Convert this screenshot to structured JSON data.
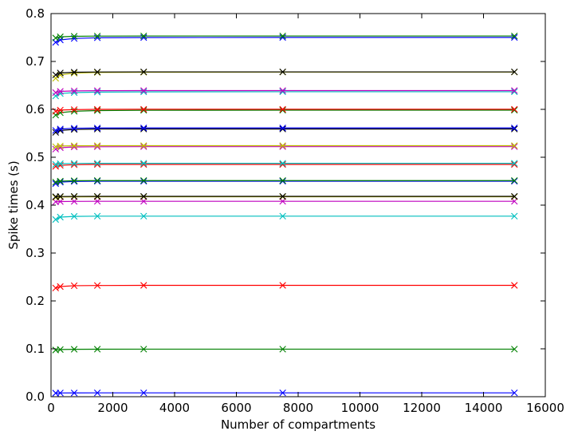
{
  "chart_data": {
    "type": "line",
    "title": "",
    "xlabel": "Number of compartments",
    "ylabel": "Spike times (s)",
    "xlim": [
      0,
      16000
    ],
    "ylim": [
      0.0,
      0.8
    ],
    "xticks": [
      0,
      2000,
      4000,
      6000,
      8000,
      10000,
      12000,
      14000,
      16000
    ],
    "xtick_labels": [
      "0",
      "2000",
      "4000",
      "6000",
      "8000",
      "10000",
      "12000",
      "14000",
      "16000"
    ],
    "yticks": [
      0.0,
      0.1,
      0.2,
      0.3,
      0.4,
      0.5,
      0.6,
      0.7,
      0.8
    ],
    "ytick_labels": [
      "0.0",
      "0.1",
      "0.2",
      "0.3",
      "0.4",
      "0.5",
      "0.6",
      "0.7",
      "0.8"
    ],
    "grid": false,
    "legend": "none",
    "marker": "x",
    "x": [
      150,
      300,
      750,
      1500,
      3000,
      7500,
      15000
    ],
    "series": [
      {
        "color": "#0000ff",
        "values": [
          0.0075,
          0.0078,
          0.0079,
          0.008,
          0.008,
          0.008,
          0.008
        ]
      },
      {
        "color": "#008000",
        "values": [
          0.0975,
          0.0985,
          0.099,
          0.0992,
          0.0993,
          0.0993,
          0.0993
        ]
      },
      {
        "color": "#ff0000",
        "values": [
          0.227,
          0.23,
          0.2318,
          0.2322,
          0.2325,
          0.2325,
          0.2325
        ]
      },
      {
        "color": "#00bfbf",
        "values": [
          0.37,
          0.375,
          0.3765,
          0.377,
          0.377,
          0.377,
          0.377
        ]
      },
      {
        "color": "#bf00bf",
        "values": [
          0.407,
          0.4075,
          0.4078,
          0.408,
          0.408,
          0.408,
          0.408
        ]
      },
      {
        "color": "#bfbf00",
        "values": [
          0.416,
          0.417,
          0.4173,
          0.4175,
          0.4175,
          0.4175,
          0.4175
        ]
      },
      {
        "color": "#000000",
        "values": [
          0.4175,
          0.418,
          0.4182,
          0.4183,
          0.4183,
          0.4183,
          0.4183
        ]
      },
      {
        "color": "#0000ff",
        "values": [
          0.445,
          0.448,
          0.4495,
          0.45,
          0.45,
          0.45,
          0.45
        ]
      },
      {
        "color": "#008000",
        "values": [
          0.448,
          0.45,
          0.451,
          0.4513,
          0.4513,
          0.4513,
          0.4513
        ]
      },
      {
        "color": "#ff0000",
        "values": [
          0.481,
          0.483,
          0.4845,
          0.485,
          0.485,
          0.485,
          0.485
        ]
      },
      {
        "color": "#00bfbf",
        "values": [
          0.485,
          0.4865,
          0.487,
          0.4873,
          0.4873,
          0.4873,
          0.4873
        ]
      },
      {
        "color": "#bf00bf",
        "values": [
          0.517,
          0.52,
          0.5215,
          0.522,
          0.5222,
          0.5222,
          0.5222
        ]
      },
      {
        "color": "#bfbf00",
        "values": [
          0.522,
          0.5235,
          0.524,
          0.5242,
          0.5242,
          0.5242,
          0.5242
        ]
      },
      {
        "color": "#000000",
        "values": [
          0.552,
          0.556,
          0.558,
          0.5588,
          0.559,
          0.559,
          0.559
        ]
      },
      {
        "color": "#0000ff",
        "values": [
          0.556,
          0.559,
          0.5605,
          0.561,
          0.5612,
          0.5612,
          0.5612
        ]
      },
      {
        "color": "#008000",
        "values": [
          0.588,
          0.593,
          0.596,
          0.5975,
          0.598,
          0.5982,
          0.5982
        ]
      },
      {
        "color": "#ff0000",
        "values": [
          0.596,
          0.5985,
          0.5995,
          0.6,
          0.6002,
          0.6002,
          0.6002
        ]
      },
      {
        "color": "#00bfbf",
        "values": [
          0.628,
          0.633,
          0.635,
          0.636,
          0.6365,
          0.6368,
          0.6368
        ]
      },
      {
        "color": "#bf00bf",
        "values": [
          0.635,
          0.6375,
          0.6385,
          0.639,
          0.6392,
          0.6392,
          0.6392
        ]
      },
      {
        "color": "#bfbf00",
        "values": [
          0.665,
          0.672,
          0.6755,
          0.677,
          0.6775,
          0.6778,
          0.6778
        ]
      },
      {
        "color": "#000000",
        "values": [
          0.672,
          0.676,
          0.6775,
          0.678,
          0.6782,
          0.6782,
          0.6782
        ]
      },
      {
        "color": "#0000ff",
        "values": [
          0.74,
          0.745,
          0.748,
          0.7495,
          0.75,
          0.7502,
          0.7502
        ]
      },
      {
        "color": "#008000",
        "values": [
          0.749,
          0.7515,
          0.7525,
          0.753,
          0.7532,
          0.7532,
          0.7532
        ]
      }
    ]
  }
}
